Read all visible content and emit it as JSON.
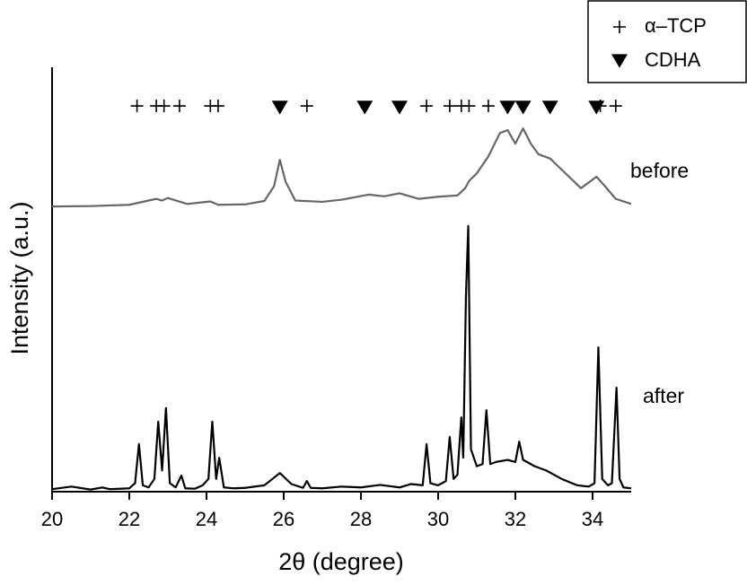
{
  "chart_data": {
    "type": "line",
    "x_label": "2θ (degree)",
    "y_label": "Intensity (a.u.)",
    "xlim": [
      20,
      35
    ],
    "xticks": [
      20,
      22,
      24,
      26,
      28,
      30,
      32,
      34
    ],
    "ylim": [
      0,
      100
    ],
    "legend": "upper right",
    "series": [
      {
        "name": "before",
        "color": "#666666",
        "x": [
          20,
          21,
          22,
          22.7,
          22.85,
          23.0,
          23.5,
          24.1,
          24.3,
          25,
          25.5,
          25.75,
          25.9,
          26.05,
          26.3,
          27,
          27.5,
          28.2,
          28.6,
          29,
          29.5,
          30,
          30.5,
          30.7,
          30.8,
          31,
          31.3,
          31.6,
          31.8,
          32.0,
          32.2,
          32.4,
          32.6,
          32.9,
          33.3,
          33.7,
          34.1,
          34.3,
          34.6,
          35
        ],
        "values": [
          67.2,
          67.3,
          67.6,
          69,
          68.6,
          69.2,
          67.8,
          68.4,
          67.6,
          67.7,
          68.5,
          72,
          78.2,
          73,
          68.6,
          68.3,
          68.8,
          70,
          69.6,
          70.3,
          69,
          69.5,
          69.8,
          71.5,
          73.2,
          75,
          79,
          84.5,
          85.2,
          82,
          85.6,
          82,
          79.5,
          78.5,
          75,
          71.5,
          74.2,
          72.2,
          69,
          67.8
        ]
      },
      {
        "name": "after",
        "color": "#000000",
        "x": [
          20,
          20.5,
          21,
          21.3,
          21.5,
          22,
          22.15,
          22.25,
          22.35,
          22.5,
          22.65,
          22.75,
          22.85,
          22.95,
          23.05,
          23.2,
          23.35,
          23.45,
          23.7,
          23.9,
          24.05,
          24.15,
          24.25,
          24.33,
          24.45,
          24.7,
          25,
          25.5,
          25.9,
          26.2,
          26.5,
          26.6,
          26.7,
          27,
          27.5,
          28,
          28.5,
          29,
          29.3,
          29.6,
          29.7,
          29.8,
          30,
          30.2,
          30.3,
          30.4,
          30.5,
          30.6,
          30.65,
          30.72,
          30.78,
          30.85,
          31,
          31.15,
          31.25,
          31.35,
          31.5,
          31.8,
          32.0,
          32.1,
          32.2,
          32.5,
          32.8,
          33.2,
          33.6,
          33.9,
          34.05,
          34.15,
          34.25,
          34.4,
          34.5,
          34.62,
          34.7,
          34.8,
          35
        ],
        "values": [
          0.6,
          1.2,
          0.5,
          1.0,
          0.6,
          0.8,
          2,
          11.2,
          1.5,
          1,
          3,
          16.5,
          5,
          19.7,
          2,
          1,
          3.8,
          0.8,
          0.7,
          1.5,
          3,
          16.5,
          3,
          8,
          1,
          0.8,
          0.9,
          1.5,
          4.4,
          1.8,
          0.9,
          2.5,
          0.9,
          0.8,
          1.2,
          1.0,
          1.6,
          1.0,
          1.8,
          1.5,
          11.2,
          2,
          1.5,
          2.5,
          12.9,
          3,
          4,
          17.5,
          8,
          46,
          62.6,
          10,
          6,
          6.5,
          19.2,
          6.5,
          7,
          7.5,
          7,
          11.8,
          7.5,
          6,
          5,
          3,
          1.5,
          1.2,
          2,
          34,
          3,
          1.5,
          2,
          24.5,
          3,
          1,
          0.8
        ]
      }
    ],
    "markers": [
      {
        "name": "α–TCP",
        "symbol": "plus",
        "color": "#000000",
        "x": [
          22.2,
          22.7,
          22.9,
          23.3,
          24.1,
          24.3,
          26.6,
          29.7,
          30.3,
          30.6,
          30.8,
          31.3,
          34.2,
          34.6
        ],
        "values": [
          90.9,
          90.9,
          90.9,
          90.9,
          90.9,
          90.9,
          90.9,
          90.9,
          90.9,
          90.9,
          90.9,
          90.9,
          90.9,
          90.9
        ]
      },
      {
        "name": "CDHA",
        "symbol": "triangle-down",
        "color": "#000000",
        "x": [
          25.9,
          28.1,
          29.0,
          31.8,
          32.2,
          32.9,
          34.1
        ],
        "values": [
          90.5,
          90.5,
          90.5,
          90.5,
          90.5,
          90.5,
          90.5
        ]
      }
    ]
  }
}
